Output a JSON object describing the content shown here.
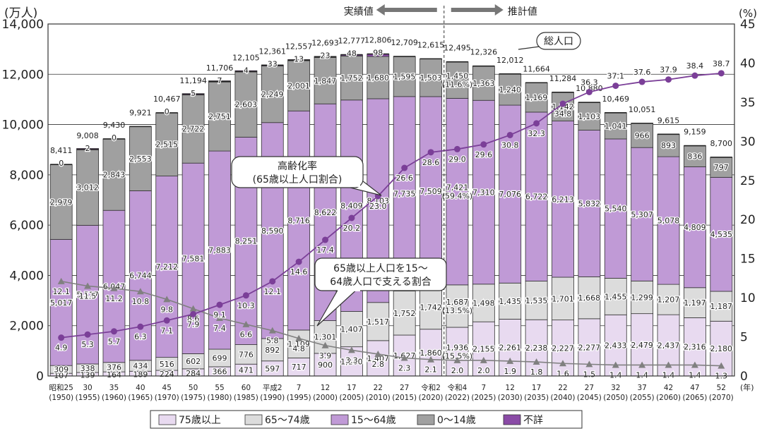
{
  "chart_data": {
    "type": "bar",
    "y_left_unit": "(万人)",
    "y_right_unit": "(%)",
    "y_left_ticks": [
      "0",
      "2,000",
      "4,000",
      "6,000",
      "8,000",
      "10,000",
      "12,000",
      "14,000"
    ],
    "y_right_ticks": [
      "0",
      "5",
      "10",
      "15",
      "20",
      "25",
      "30",
      "35",
      "40",
      "45"
    ],
    "ylim_left": [
      0,
      14000
    ],
    "ylim_right": [
      0,
      45
    ],
    "x_unit": "(年)",
    "categories": [
      {
        "top": "昭和25",
        "bottom": "(1950)"
      },
      {
        "top": "30",
        "bottom": "(1955)"
      },
      {
        "top": "35",
        "bottom": "(1960)"
      },
      {
        "top": "40",
        "bottom": "(1965)"
      },
      {
        "top": "45",
        "bottom": "(1970)"
      },
      {
        "top": "50",
        "bottom": "(1975)"
      },
      {
        "top": "55",
        "bottom": "(1980)"
      },
      {
        "top": "60",
        "bottom": "(1985)"
      },
      {
        "top": "平成2",
        "bottom": "(1990)"
      },
      {
        "top": "7",
        "bottom": "(1995)"
      },
      {
        "top": "12",
        "bottom": "(2000)"
      },
      {
        "top": "17",
        "bottom": "(2005)"
      },
      {
        "top": "22",
        "bottom": "(2010)"
      },
      {
        "top": "27",
        "bottom": "(2015)"
      },
      {
        "top": "令和2",
        "bottom": "(2020)"
      },
      {
        "top": "令和4",
        "bottom": "(2022)"
      },
      {
        "top": "7",
        "bottom": "(2025)"
      },
      {
        "top": "12",
        "bottom": "(2030)"
      },
      {
        "top": "17",
        "bottom": "(2035)"
      },
      {
        "top": "22",
        "bottom": "(2040)"
      },
      {
        "top": "27",
        "bottom": "(2045)"
      },
      {
        "top": "32",
        "bottom": "(2050)"
      },
      {
        "top": "37",
        "bottom": "(2055)"
      },
      {
        "top": "42",
        "bottom": "(2060)"
      },
      {
        "top": "47",
        "bottom": "(2065)"
      },
      {
        "top": "52",
        "bottom": "(2070)"
      }
    ],
    "series": [
      {
        "name": "75歳以上",
        "color": "#e8daf0",
        "values": [
          107,
          139,
          164,
          189,
          224,
          284,
          366,
          471,
          597,
          717,
          900,
          1160,
          1407,
          1627,
          1860,
          1936,
          2155,
          2261,
          2238,
          2227,
          2277,
          2433,
          2479,
          2437,
          2316,
          2180
        ],
        "labels": [
          "107",
          "139",
          "164",
          "189",
          "224",
          "284",
          "366",
          "471",
          "597",
          "717",
          "900",
          "1,160",
          "1,407",
          "1,627",
          "1,860",
          "1,936\n(15.5%)",
          "2,155",
          "2,261",
          "2,238",
          "2,227",
          "2,277",
          "2,433",
          "2,479",
          "2,437",
          "2,316",
          "2,180"
        ]
      },
      {
        "name": "65〜74歳",
        "color": "#dcdcdc",
        "values": [
          309,
          338,
          376,
          434,
          516,
          602,
          699,
          776,
          892,
          1109,
          1301,
          1407,
          1517,
          1752,
          1742,
          1687,
          1498,
          1435,
          1535,
          1701,
          1668,
          1455,
          1299,
          1207,
          1197,
          1187
        ],
        "labels": [
          "309",
          "338",
          "376",
          "434",
          "516",
          "602",
          "699",
          "776",
          "892",
          "1,109",
          "1,301",
          "1,407",
          "1,517",
          "1,752",
          "1,742",
          "1,687\n(13.5%)",
          "1,498",
          "1,435",
          "1,535",
          "1,701",
          "1,668",
          "1,455",
          "1,299",
          "1,207",
          "1,197",
          "1,187"
        ]
      },
      {
        "name": "15〜64歳",
        "color": "#c09ad6",
        "values": [
          5017,
          5517,
          6047,
          6744,
          7212,
          7581,
          7883,
          8251,
          8590,
          8716,
          8622,
          8409,
          8103,
          7735,
          7509,
          7421,
          7310,
          7076,
          6722,
          6213,
          5832,
          5540,
          5307,
          5078,
          4809,
          4535
        ],
        "labels": [
          "5,017",
          "5,517",
          "6,047",
          "6,744",
          "7,212",
          "7,581",
          "7,883",
          "8,251",
          "8,590",
          "8,716",
          "8,622",
          "8,409",
          "8,103",
          "7,735",
          "7,509",
          "7,421\n(59.4%)",
          "7,310",
          "7,076",
          "6,722",
          "6,213",
          "5,832",
          "5,540",
          "5,307",
          "5,078",
          "4,809",
          "4,535"
        ]
      },
      {
        "name": "0〜14歳",
        "color": "#a0a0a0",
        "values": [
          2979,
          3012,
          2843,
          2553,
          2515,
          2722,
          2751,
          2603,
          2249,
          2001,
          1847,
          1752,
          1680,
          1595,
          1503,
          1450,
          1363,
          1240,
          1169,
          1142,
          1103,
          1041,
          966,
          893,
          836,
          797
        ],
        "labels": [
          "2,979",
          "3,012",
          "2,843",
          "2,553",
          "2,515",
          "2,722",
          "2,751",
          "2,603",
          "2,249",
          "2,001",
          "1,847",
          "1,752",
          "1,680",
          "1,595",
          "1,503",
          "1,450\n(11.6%)",
          "1,363",
          "1,240",
          "1,169",
          "1,142",
          "1,103",
          "1,041",
          "966",
          "893",
          "836",
          "797"
        ]
      },
      {
        "name": "不詳",
        "color": "#8a4aa6",
        "values": [
          0,
          2,
          0,
          0,
          0,
          5,
          7,
          4,
          33,
          13,
          23,
          48,
          98,
          0,
          0,
          0,
          0,
          0,
          0,
          0,
          0,
          0,
          0,
          0,
          0,
          0
        ],
        "labels": [
          "0",
          "2",
          "0",
          "",
          "0",
          "5",
          "7",
          "4",
          "33",
          "13",
          "23",
          "48",
          "98",
          "",
          "",
          "",
          "",
          "",
          "",
          "",
          "",
          "",
          "",
          "",
          "",
          ""
        ]
      }
    ],
    "totals": [
      "8,411",
      "9,008",
      "9,430",
      "9,921",
      "10,467",
      "11,194",
      "11,706",
      "12,105",
      "12,361",
      "12,557",
      "12,693",
      "12,777",
      "12,806",
      "12,709",
      "12,615",
      "12,495",
      "12,326",
      "12,012",
      "11,664",
      "11,284",
      "10,880",
      "10,469",
      "10,051",
      "9,615",
      "9,159",
      "8,700"
    ],
    "total_values": [
      8411,
      9008,
      9430,
      9921,
      10467,
      11194,
      11706,
      12105,
      12361,
      12557,
      12693,
      12777,
      12806,
      12709,
      12615,
      12495,
      12326,
      12012,
      11664,
      11284,
      10880,
      10469,
      10051,
      9615,
      9159,
      8700
    ],
    "aging_rate": {
      "values": [
        4.9,
        5.3,
        5.7,
        6.3,
        7.1,
        7.9,
        9.1,
        10.3,
        12.1,
        14.6,
        17.4,
        20.2,
        23.0,
        26.6,
        28.6,
        29.0,
        29.6,
        30.8,
        32.3,
        34.8,
        36.3,
        37.1,
        37.6,
        37.9,
        38.4,
        38.7
      ],
      "labels": [
        "4.9",
        "5.3",
        "5.7",
        "6.3",
        "7.1",
        "7.9",
        "9.1",
        "10.3",
        "12.1",
        "14.6",
        "17.4",
        "20.2",
        "23.0",
        "26.6",
        "28.6",
        "29.0",
        "29.6",
        "30.8",
        "32.3",
        "34.8",
        "36.3",
        "37.1",
        "37.6",
        "37.9",
        "38.4",
        "38.7"
      ],
      "color": "#7b3f98"
    },
    "support_ratio": {
      "values": [
        12.1,
        11.5,
        11.2,
        10.8,
        9.8,
        8.6,
        7.4,
        6.6,
        5.8,
        4.8,
        3.9,
        3.3,
        2.8,
        2.3,
        2.1,
        2.0,
        2.0,
        1.9,
        1.8,
        1.6,
        1.5,
        1.4,
        1.4,
        1.4,
        1.4,
        1.3
      ],
      "labels": [
        "12.1",
        "11.5",
        "11.2",
        "10.8",
        "9.8",
        "8.6",
        "7.4",
        "6.6",
        "5.8",
        "4.8",
        "3.9",
        "3.3",
        "2.8",
        "2.3",
        "2.1",
        "2.0",
        "2.0",
        "1.9",
        "1.8",
        "1.6",
        "1.5",
        "1.4",
        "1.4",
        "1.4",
        "1.4",
        "1.3"
      ],
      "color": "#808080"
    },
    "annotations": {
      "actual": "実績値",
      "projected": "推計値",
      "total_population": "総人口",
      "aging_rate_line1": "高齢化率",
      "aging_rate_line2": "(65歳以上人口割合)",
      "support_line1": "65歳以上人口を15〜",
      "support_line2": "64歳人口で支える割合"
    },
    "legend": [
      {
        "label": "75歳以上",
        "color": "#e8daf0"
      },
      {
        "label": "65〜74歳",
        "color": "#dcdcdc"
      },
      {
        "label": "15〜64歳",
        "color": "#c09ad6"
      },
      {
        "label": "0〜14歳",
        "color": "#a0a0a0"
      },
      {
        "label": "不詳",
        "color": "#8a4aa6"
      }
    ],
    "grid": true,
    "legend_position": "bottom"
  }
}
